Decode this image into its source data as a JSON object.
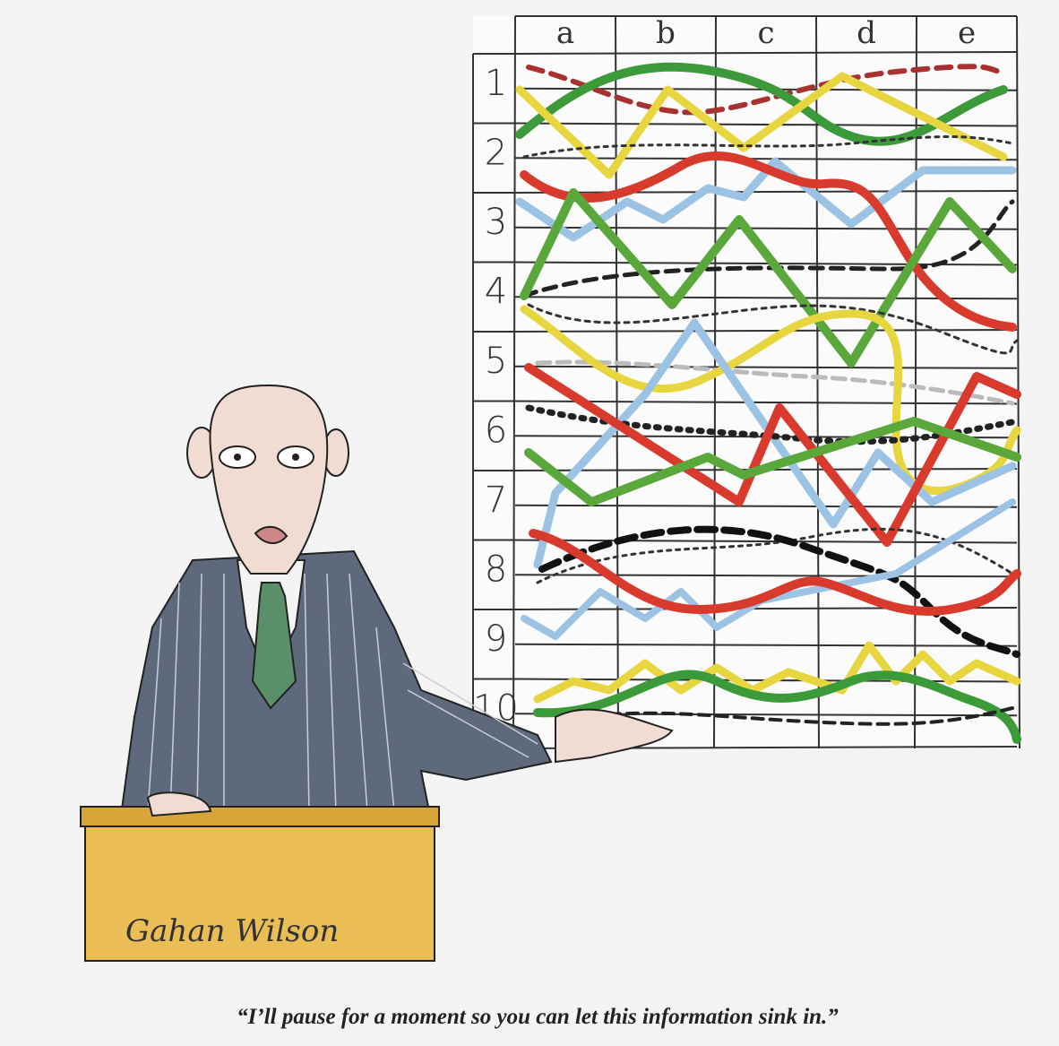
{
  "chart": {
    "columns": [
      "a",
      "b",
      "c",
      "d",
      "e"
    ],
    "rows": [
      "1",
      "2",
      "3",
      "4",
      "5",
      "6",
      "7",
      "8",
      "9",
      "10"
    ]
  },
  "signature": "Gahan Wilson",
  "caption": "“I’ll pause for a moment so you can let this information sink in.”"
}
